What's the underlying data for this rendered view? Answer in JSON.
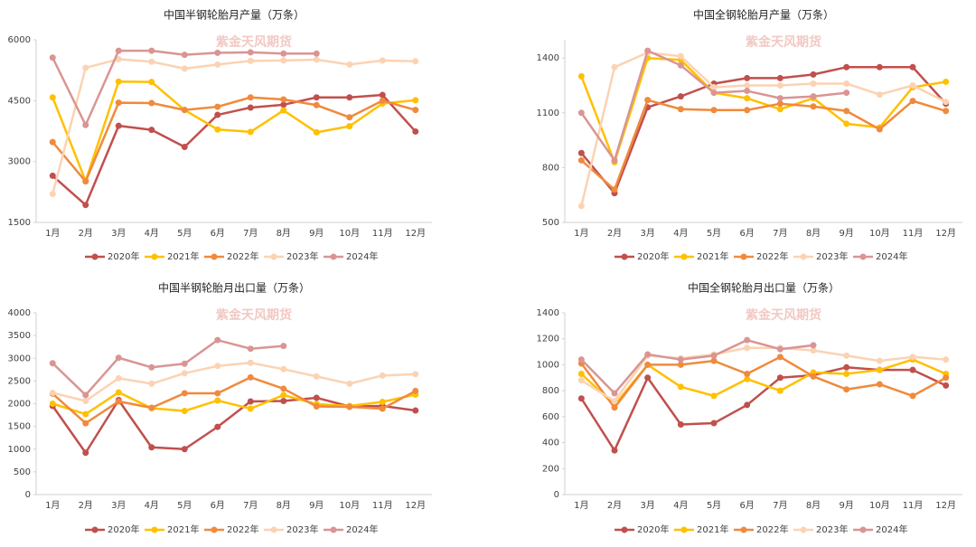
{
  "chart_data": [
    {
      "type": "line",
      "title": "中国半钢轮胎月产量（万条）",
      "watermark": "紫金天风期货",
      "categories": [
        "1月",
        "2月",
        "3月",
        "4月",
        "5月",
        "6月",
        "7月",
        "8月",
        "9月",
        "10月",
        "11月",
        "12月"
      ],
      "ylim": [
        1500,
        6000
      ],
      "yticks": [
        1500,
        3000,
        4500,
        6000
      ],
      "grid": false,
      "legend": "bottom",
      "series": [
        {
          "name": "2020年",
          "color": "#c0504d",
          "values": [
            2650,
            1930,
            3880,
            3780,
            3360,
            4150,
            4330,
            4400,
            4580,
            4580,
            4640,
            3740
          ]
        },
        {
          "name": "2021年",
          "color": "#ffc000",
          "values": [
            4580,
            2520,
            4970,
            4960,
            4270,
            3790,
            3730,
            4260,
            3720,
            3870,
            4430,
            4510
          ]
        },
        {
          "name": "2022年",
          "color": "#f08a3c",
          "values": [
            3480,
            2510,
            4450,
            4440,
            4270,
            4350,
            4580,
            4530,
            4390,
            4090,
            4500,
            4270
          ]
        },
        {
          "name": "2023年",
          "color": "#fbd3b3",
          "values": [
            2200,
            5310,
            5520,
            5460,
            5290,
            5390,
            5480,
            5490,
            5510,
            5390,
            5490,
            5470
          ]
        },
        {
          "name": "2024年",
          "color": "#d99594",
          "values": [
            5560,
            3900,
            5730,
            5730,
            5630,
            5680,
            5690,
            5660,
            5660,
            null,
            null,
            null
          ]
        }
      ]
    },
    {
      "type": "line",
      "title": "中国全钢轮胎月产量（万条）",
      "watermark": "紫金天风期货",
      "categories": [
        "1月",
        "2月",
        "3月",
        "4月",
        "5月",
        "6月",
        "7月",
        "8月",
        "9月",
        "10月",
        "11月",
        "12月"
      ],
      "ylim": [
        500,
        1500
      ],
      "yticks": [
        500,
        800,
        1100,
        1400
      ],
      "grid": false,
      "legend": "bottom",
      "series": [
        {
          "name": "2020年",
          "color": "#c0504d",
          "values": [
            880,
            660,
            1130,
            1190,
            1260,
            1290,
            1290,
            1310,
            1350,
            1350,
            1350,
            1150
          ]
        },
        {
          "name": "2021年",
          "color": "#ffc000",
          "values": [
            1300,
            830,
            1400,
            1390,
            1210,
            1180,
            1120,
            1180,
            1040,
            1020,
            1240,
            1270
          ]
        },
        {
          "name": "2022年",
          "color": "#f08a3c",
          "values": [
            840,
            680,
            1170,
            1120,
            1115,
            1115,
            1150,
            1135,
            1110,
            1010,
            1165,
            1110
          ]
        },
        {
          "name": "2023年",
          "color": "#fbd3b3",
          "values": [
            590,
            1350,
            1430,
            1410,
            1240,
            1250,
            1250,
            1260,
            1260,
            1200,
            1250,
            1160
          ]
        },
        {
          "name": "2024年",
          "color": "#d99594",
          "values": [
            1100,
            840,
            1440,
            1360,
            1210,
            1220,
            1180,
            1190,
            1210,
            null,
            null,
            null
          ]
        }
      ]
    },
    {
      "type": "line",
      "title": "中国半钢轮胎月出口量（万条）",
      "watermark": "紫金天风期货",
      "categories": [
        "1月",
        "2月",
        "3月",
        "4月",
        "5月",
        "6月",
        "7月",
        "8月",
        "9月",
        "10月",
        "11月",
        "12月"
      ],
      "ylim": [
        0,
        4000
      ],
      "yticks": [
        0,
        500,
        1000,
        1500,
        2000,
        2500,
        3000,
        3500,
        4000
      ],
      "grid": false,
      "legend": "bottom",
      "series": [
        {
          "name": "2020年",
          "color": "#c0504d",
          "values": [
            1950,
            920,
            2080,
            1040,
            1000,
            1490,
            2050,
            2060,
            2130,
            1940,
            1950,
            1850
          ]
        },
        {
          "name": "2021年",
          "color": "#ffc000",
          "values": [
            2000,
            1770,
            2250,
            1900,
            1840,
            2070,
            1890,
            2190,
            1990,
            1950,
            2040,
            2200
          ]
        },
        {
          "name": "2022年",
          "color": "#f08a3c",
          "values": [
            2220,
            1570,
            2050,
            1910,
            2230,
            2230,
            2580,
            2330,
            1940,
            1930,
            1890,
            2280
          ]
        },
        {
          "name": "2023年",
          "color": "#fbd3b3",
          "values": [
            2240,
            2060,
            2560,
            2440,
            2670,
            2830,
            2900,
            2760,
            2600,
            2440,
            2620,
            2650
          ]
        },
        {
          "name": "2024年",
          "color": "#d99594",
          "values": [
            2890,
            2190,
            3010,
            2800,
            2880,
            3400,
            3210,
            3270,
            null,
            null,
            null,
            null
          ]
        }
      ]
    },
    {
      "type": "line",
      "title": "中国全钢轮胎月出口量（万条）",
      "watermark": "紫金天风期货",
      "categories": [
        "1月",
        "2月",
        "3月",
        "4月",
        "5月",
        "6月",
        "7月",
        "8月",
        "9月",
        "10月",
        "11月",
        "12月"
      ],
      "ylim": [
        0,
        1400
      ],
      "yticks": [
        0,
        200,
        400,
        600,
        800,
        1000,
        1200,
        1400
      ],
      "grid": false,
      "legend": "bottom",
      "series": [
        {
          "name": "2020年",
          "color": "#c0504d",
          "values": [
            740,
            340,
            900,
            540,
            550,
            690,
            900,
            920,
            980,
            960,
            960,
            840
          ]
        },
        {
          "name": "2021年",
          "color": "#ffc000",
          "values": [
            930,
            690,
            1000,
            830,
            760,
            890,
            800,
            940,
            930,
            960,
            1040,
            930
          ]
        },
        {
          "name": "2022年",
          "color": "#f08a3c",
          "values": [
            1010,
            670,
            1000,
            1000,
            1030,
            930,
            1060,
            910,
            810,
            850,
            760,
            900
          ]
        },
        {
          "name": "2023年",
          "color": "#fbd3b3",
          "values": [
            880,
            720,
            1070,
            1050,
            1080,
            1130,
            1130,
            1110,
            1070,
            1030,
            1060,
            1040
          ]
        },
        {
          "name": "2024年",
          "color": "#d99594",
          "values": [
            1040,
            780,
            1080,
            1040,
            1070,
            1190,
            1120,
            1150,
            null,
            null,
            null,
            null
          ]
        }
      ]
    }
  ]
}
